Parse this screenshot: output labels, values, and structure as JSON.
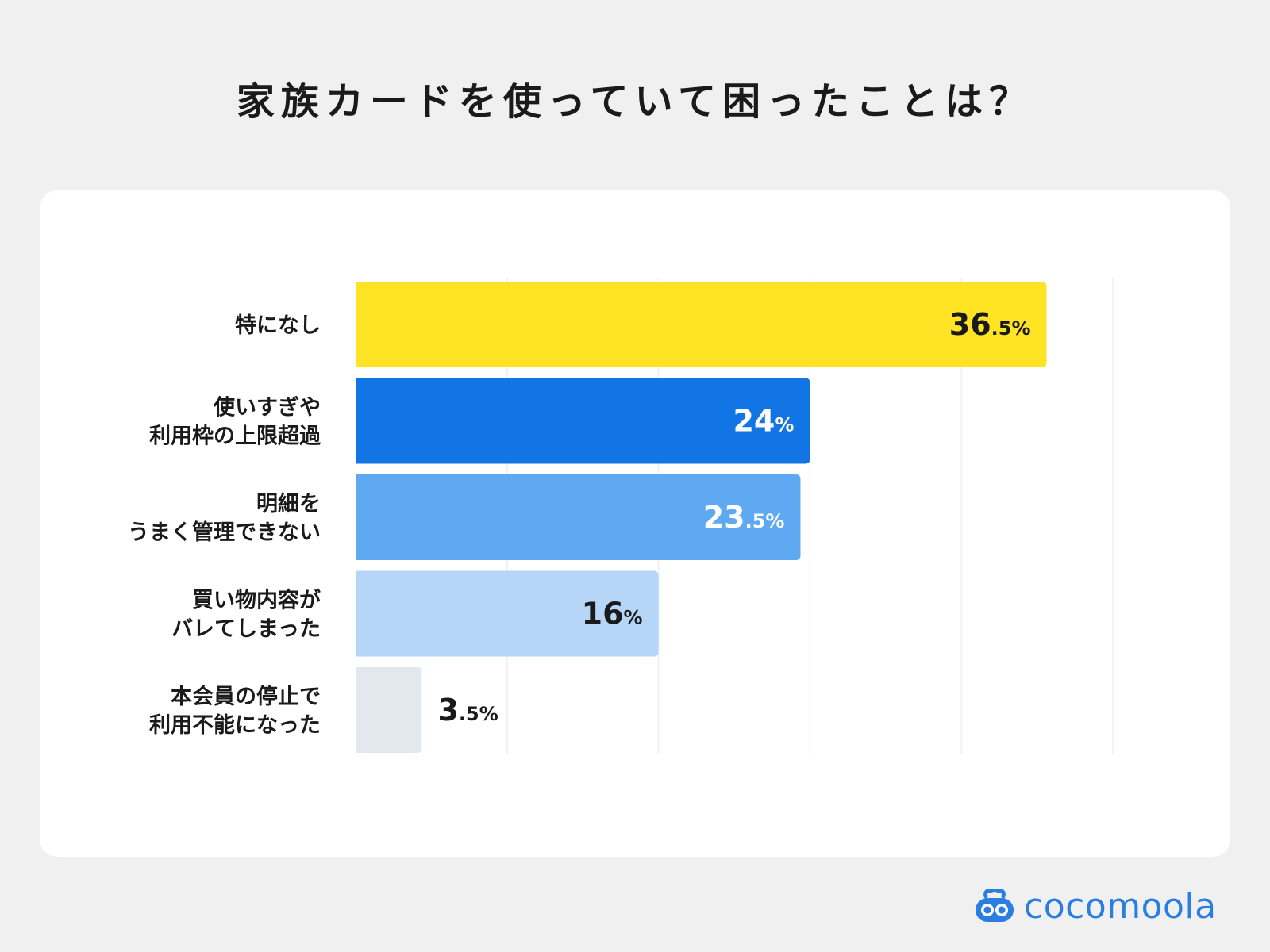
{
  "title": "家族カードを使っていて困ったことは？",
  "brand": {
    "name": "cocomoola",
    "color": "#2a7de1"
  },
  "chart_data": {
    "type": "bar",
    "orientation": "horizontal",
    "categories": [
      [
        "特になし"
      ],
      [
        "使いすぎや",
        "利用枠の上限超過"
      ],
      [
        "明細を",
        "うまく管理できない"
      ],
      [
        "買い物内容が",
        "バレてしまった"
      ],
      [
        "本会員の停止で",
        "利用不能になった"
      ]
    ],
    "values": [
      36.5,
      24,
      23.5,
      16,
      3.5
    ],
    "value_labels": [
      {
        "int": "36",
        "dec": ".5",
        "unit": "%"
      },
      {
        "int": "24",
        "dec": "",
        "unit": "%"
      },
      {
        "int": "23",
        "dec": ".5",
        "unit": "%"
      },
      {
        "int": "16",
        "dec": "",
        "unit": "%"
      },
      {
        "int": "3",
        "dec": ".5",
        "unit": "%"
      }
    ],
    "colors": [
      "#ffe324",
      "#1275e6",
      "#5ea9f2",
      "#b6d6f8",
      "#e3e8ee"
    ],
    "label_colors": [
      "#1a1a1a",
      "#ffffff",
      "#ffffff",
      "#1a1a1a",
      "#1a1a1a"
    ],
    "xlim": [
      0,
      40
    ],
    "grid": true,
    "gridline_values": [
      8,
      16,
      24,
      32,
      40
    ]
  }
}
